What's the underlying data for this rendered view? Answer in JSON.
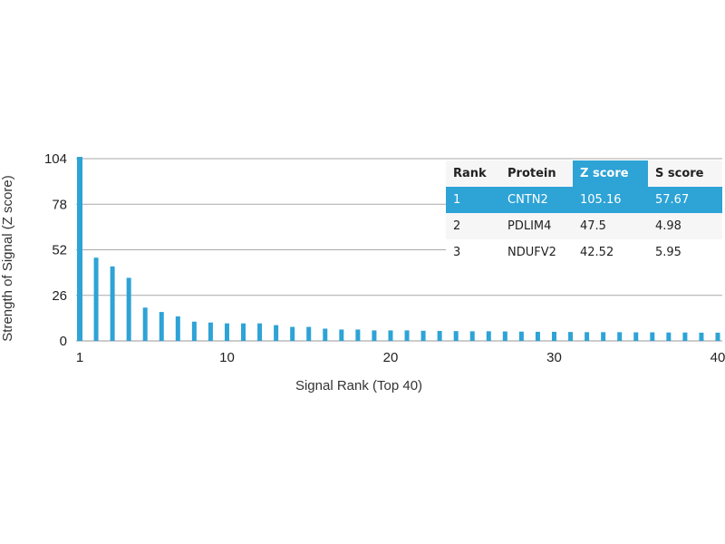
{
  "chart_data": {
    "type": "bar",
    "xlabel": "Signal Rank (Top 40)",
    "ylabel": "Strength of Signal (Z score)",
    "ylim": [
      0,
      104
    ],
    "yticks": [
      0,
      26,
      52,
      78,
      104
    ],
    "xticks": [
      1,
      10,
      20,
      30,
      40
    ],
    "grid": true,
    "bar_color": "#2ea3d6",
    "x": [
      1,
      2,
      3,
      4,
      5,
      6,
      7,
      8,
      9,
      10,
      11,
      12,
      13,
      14,
      15,
      16,
      17,
      18,
      19,
      20,
      21,
      22,
      23,
      24,
      25,
      26,
      27,
      28,
      29,
      30,
      31,
      32,
      33,
      34,
      35,
      36,
      37,
      38,
      39,
      40
    ],
    "values": [
      105.16,
      47.5,
      42.52,
      36,
      19,
      16.5,
      14,
      11,
      10.5,
      10,
      10,
      10,
      9,
      8,
      8,
      7,
      6.5,
      6.5,
      6,
      6,
      6,
      5.8,
      5.7,
      5.6,
      5.5,
      5.5,
      5.4,
      5.3,
      5.2,
      5.2,
      5.1,
      5,
      5,
      5,
      4.9,
      4.9,
      4.8,
      4.8,
      4.7,
      4.7
    ]
  },
  "table": {
    "headers": [
      "Rank",
      "Protein",
      "Z score",
      "S score"
    ],
    "highlight_color": "#2ea3d6",
    "rows": [
      [
        "1",
        "CNTN2",
        "105.16",
        "57.67"
      ],
      [
        "2",
        "PDLIM4",
        "47.5",
        "4.98"
      ],
      [
        "3",
        "NDUFV2",
        "42.52",
        "5.95"
      ]
    ]
  }
}
